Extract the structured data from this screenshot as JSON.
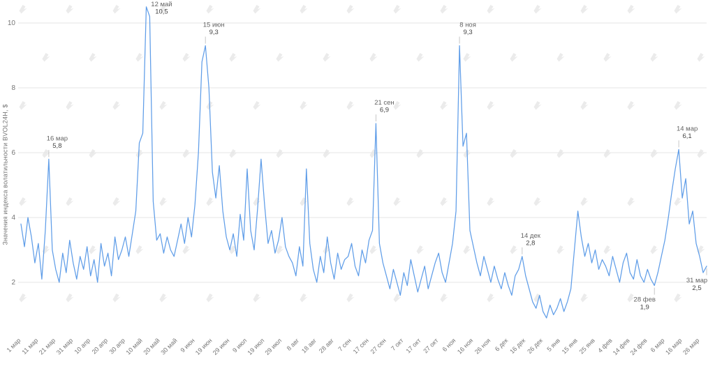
{
  "chart_data": {
    "type": "line",
    "title": "",
    "xlabel": "",
    "ylabel": "Значения индекса волатильности BVOL24H, $",
    "ylim": [
      0,
      11
    ],
    "y_ticks": [
      2,
      4,
      6,
      8,
      10
    ],
    "grid": true,
    "legend": "none",
    "x_tick_every": 5,
    "x_tick_labels": [
      "1 мар",
      "11 мар",
      "21 мар",
      "31 мар",
      "10 апр",
      "20 апр",
      "30 апр",
      "10 май",
      "20 май",
      "30 май",
      "9 июн",
      "19 июн",
      "29 июн",
      "9 июл",
      "19 июл",
      "29 июл",
      "8 авг",
      "18 авг",
      "28 авг",
      "7 сен",
      "17 сен",
      "27 сен",
      "7 окт",
      "17 окт",
      "27 окт",
      "6 ноя",
      "16 ноя",
      "26 ноя",
      "6 дек",
      "16 дек",
      "26 дек",
      "5 янв",
      "15 янв",
      "25 янв",
      "4 фев",
      "14 фев",
      "24 фев",
      "6 мар",
      "16 мар",
      "26 мар"
    ],
    "values": [
      3.8,
      3.1,
      4.0,
      3.4,
      2.6,
      3.2,
      2.1,
      3.6,
      5.8,
      3.0,
      2.4,
      2.0,
      2.9,
      2.3,
      3.3,
      2.6,
      2.1,
      2.8,
      2.4,
      3.1,
      2.2,
      2.7,
      2.0,
      3.2,
      2.5,
      2.9,
      2.2,
      3.4,
      2.7,
      3.0,
      3.4,
      2.8,
      3.5,
      4.2,
      6.3,
      6.6,
      10.5,
      10.2,
      4.5,
      3.3,
      3.5,
      2.9,
      3.4,
      3.0,
      2.8,
      3.3,
      3.8,
      3.2,
      4.0,
      3.4,
      4.4,
      6.0,
      8.8,
      9.3,
      8.0,
      5.4,
      4.6,
      5.6,
      4.2,
      3.4,
      3.0,
      3.5,
      2.8,
      4.1,
      3.3,
      5.5,
      3.6,
      3.0,
      4.3,
      5.8,
      4.4,
      3.2,
      3.6,
      2.9,
      3.3,
      4.0,
      3.1,
      2.8,
      2.6,
      2.2,
      3.1,
      2.5,
      5.5,
      3.2,
      2.4,
      2.0,
      2.8,
      2.3,
      3.4,
      2.6,
      2.1,
      2.9,
      2.4,
      2.7,
      2.8,
      3.2,
      2.5,
      2.2,
      3.0,
      2.6,
      3.3,
      3.6,
      6.9,
      3.2,
      2.6,
      2.2,
      1.8,
      2.4,
      2.0,
      1.6,
      2.3,
      1.9,
      2.7,
      2.2,
      1.7,
      2.1,
      2.5,
      1.8,
      2.2,
      2.6,
      2.9,
      2.3,
      2.0,
      2.6,
      3.2,
      4.2,
      9.3,
      6.2,
      6.6,
      3.6,
      3.1,
      2.6,
      2.2,
      2.8,
      2.4,
      2.0,
      2.5,
      2.1,
      1.8,
      2.3,
      1.9,
      1.6,
      2.2,
      2.4,
      2.8,
      2.2,
      1.8,
      1.4,
      1.2,
      1.6,
      1.1,
      0.9,
      1.3,
      1.0,
      1.2,
      1.5,
      1.1,
      1.4,
      1.8,
      3.0,
      4.2,
      3.4,
      2.8,
      3.2,
      2.6,
      3.0,
      2.4,
      2.7,
      2.5,
      2.2,
      2.8,
      2.4,
      2.0,
      2.6,
      2.9,
      2.3,
      2.1,
      2.7,
      2.2,
      2.0,
      2.4,
      2.1,
      1.9,
      2.3,
      2.8,
      3.3,
      4.0,
      4.8,
      5.5,
      6.1,
      4.6,
      5.2,
      3.8,
      4.2,
      3.2,
      2.8,
      2.3,
      2.5
    ],
    "annotations": [
      {
        "index": 8,
        "date": "16 мар",
        "value": "5,8",
        "placement": "above"
      },
      {
        "index": 36,
        "date": "12 май",
        "value": "10,5",
        "placement": "above"
      },
      {
        "index": 53,
        "date": "15 июн",
        "value": "9,3",
        "placement": "above"
      },
      {
        "index": 102,
        "date": "21 сен",
        "value": "6,9",
        "placement": "above"
      },
      {
        "index": 126,
        "date": "8 ноя",
        "value": "9,3",
        "placement": "above"
      },
      {
        "index": 144,
        "date": "14 дек",
        "value": "2,8",
        "placement": "above"
      },
      {
        "index": 182,
        "date": "28 фев",
        "value": "1,9",
        "placement": "below"
      },
      {
        "index": 189,
        "date": "14 мар",
        "value": "6,1",
        "placement": "above"
      },
      {
        "index": 197,
        "date": "31 мар",
        "value": "2,5",
        "placement": "below"
      }
    ]
  },
  "colors": {
    "line": "#5f9de8",
    "grid": "#e6e6e6",
    "axis_text": "#757575",
    "annotation_date": "#636363",
    "annotation_value": "#444444",
    "annotation_stem": "#c6c6c6",
    "watermark": "#ebebeb",
    "background": "#ffffff"
  },
  "watermark": {
    "name": "forklog-logo",
    "repeated": true
  }
}
